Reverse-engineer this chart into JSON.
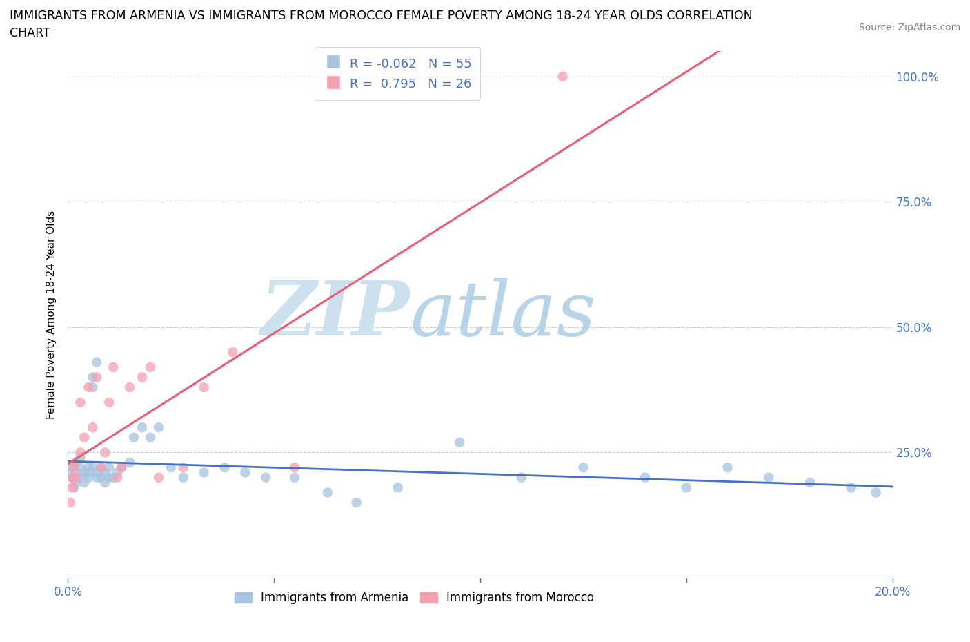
{
  "title_line1": "IMMIGRANTS FROM ARMENIA VS IMMIGRANTS FROM MOROCCO FEMALE POVERTY AMONG 18-24 YEAR OLDS CORRELATION",
  "title_line2": "CHART",
  "source": "Source: ZipAtlas.com",
  "ylabel": "Female Poverty Among 18-24 Year Olds",
  "xlim": [
    0.0,
    0.2
  ],
  "ylim": [
    0.0,
    1.05
  ],
  "xtick_positions": [
    0.0,
    0.05,
    0.1,
    0.15,
    0.2
  ],
  "xticklabels": [
    "0.0%",
    "",
    "",
    "",
    "20.0%"
  ],
  "ytick_right_positions": [
    0.25,
    0.5,
    0.75,
    1.0
  ],
  "ytick_right_labels": [
    "25.0%",
    "50.0%",
    "75.0%",
    "100.0%"
  ],
  "armenia_color": "#a8c4e0",
  "morocco_color": "#f4a0b0",
  "armenia_line_color": "#4472c4",
  "morocco_line_color": "#e8607a",
  "R_armenia": -0.062,
  "N_armenia": 55,
  "R_morocco": 0.795,
  "N_morocco": 26,
  "legend_R_color": "#4472c4",
  "watermark_zip_color": "#cce0ee",
  "watermark_atlas_color": "#b8d4e8",
  "grid_color": "#cccccc",
  "arm_legend_label": "Immigrants from Armenia",
  "mor_legend_label": "Immigrants from Morocco",
  "armenia_x": [
    0.0005,
    0.001,
    0.001,
    0.0015,
    0.002,
    0.002,
    0.002,
    0.003,
    0.003,
    0.003,
    0.004,
    0.004,
    0.005,
    0.005,
    0.005,
    0.006,
    0.006,
    0.006,
    0.007,
    0.007,
    0.007,
    0.008,
    0.008,
    0.009,
    0.009,
    0.01,
    0.01,
    0.011,
    0.012,
    0.013,
    0.015,
    0.016,
    0.018,
    0.02,
    0.022,
    0.025,
    0.028,
    0.033,
    0.038,
    0.043,
    0.048,
    0.055,
    0.063,
    0.07,
    0.08,
    0.095,
    0.11,
    0.125,
    0.14,
    0.15,
    0.16,
    0.17,
    0.18,
    0.19,
    0.196
  ],
  "armenia_y": [
    0.21,
    0.2,
    0.22,
    0.18,
    0.19,
    0.21,
    0.23,
    0.2,
    0.22,
    0.24,
    0.19,
    0.21,
    0.2,
    0.22,
    0.21,
    0.4,
    0.38,
    0.22,
    0.43,
    0.2,
    0.21,
    0.2,
    0.22,
    0.19,
    0.21,
    0.2,
    0.22,
    0.2,
    0.21,
    0.22,
    0.23,
    0.28,
    0.3,
    0.28,
    0.3,
    0.22,
    0.2,
    0.21,
    0.22,
    0.21,
    0.2,
    0.2,
    0.17,
    0.15,
    0.18,
    0.27,
    0.2,
    0.22,
    0.2,
    0.18,
    0.22,
    0.2,
    0.19,
    0.18,
    0.17
  ],
  "morocco_x": [
    0.0005,
    0.001,
    0.001,
    0.0015,
    0.002,
    0.003,
    0.003,
    0.004,
    0.005,
    0.006,
    0.007,
    0.008,
    0.009,
    0.01,
    0.011,
    0.012,
    0.013,
    0.015,
    0.018,
    0.02,
    0.022,
    0.028,
    0.033,
    0.04,
    0.055,
    0.12
  ],
  "morocco_y": [
    0.15,
    0.18,
    0.2,
    0.22,
    0.2,
    0.25,
    0.35,
    0.28,
    0.38,
    0.3,
    0.4,
    0.22,
    0.25,
    0.35,
    0.42,
    0.2,
    0.22,
    0.38,
    0.4,
    0.42,
    0.2,
    0.22,
    0.38,
    0.45,
    0.22,
    1.0
  ]
}
